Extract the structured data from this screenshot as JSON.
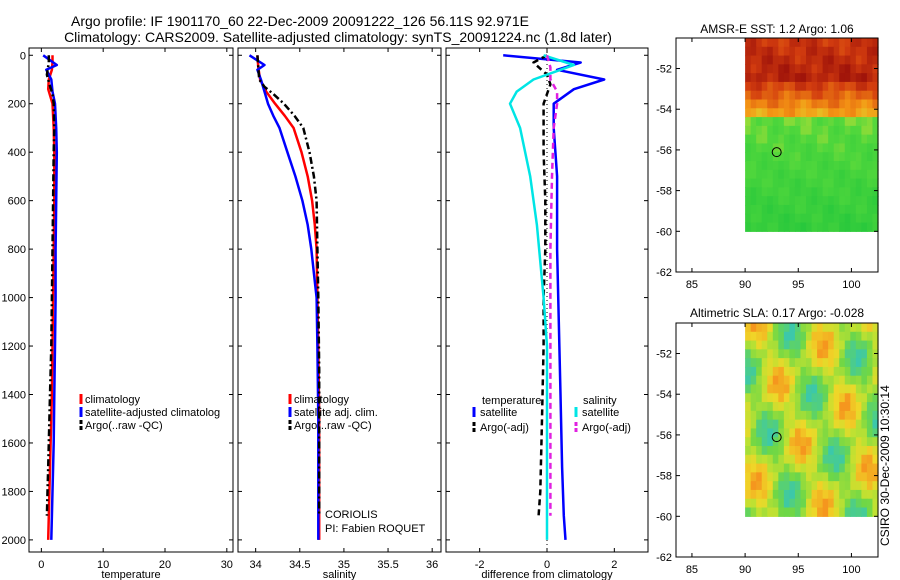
{
  "header": {
    "line1": "Argo profile: IF 1901170_60 22-Dec-2009 20091222_126 56.11S 92.971E",
    "line2": "Climatology: CARS2009. Satellite-adjusted climatology: synTS_20091224.nc (1.8d later)"
  },
  "footer_stamp": "CSIRO 30-Dec-2009 10:30:14",
  "colors": {
    "climatology": "#ff0000",
    "satellite": "#0000ff",
    "argo": "#000000",
    "sal_satellite": "#00e5e5",
    "sal_argo": "#e020e0"
  },
  "chart_data": [
    {
      "type": "line",
      "id": "temperature",
      "xlabel": "temperature",
      "ylabel": "",
      "xlim": [
        -2,
        31
      ],
      "ylim": [
        2050,
        -30
      ],
      "xticks": [
        0,
        10,
        20,
        30
      ],
      "yticks": [
        0,
        200,
        400,
        600,
        800,
        1000,
        1200,
        1400,
        1600,
        1800,
        2000
      ],
      "legend": [
        "climatology",
        "satellite-adjusted climatolog",
        "Argo(..raw -QC)"
      ],
      "legend_position": "lower-right",
      "series": [
        {
          "name": "climatology",
          "style": "solid",
          "x": [
            1.8,
            1.8,
            1.7,
            1.2,
            1.1,
            1.8,
            2.0,
            2.1,
            2.1,
            2.0,
            1.9,
            1.8,
            1.7,
            1.5,
            1.4,
            1.3,
            1.2,
            1.1
          ],
          "y": [
            0,
            30,
            60,
            100,
            140,
            200,
            300,
            400,
            600,
            800,
            1000,
            1200,
            1400,
            1600,
            1700,
            1800,
            1900,
            2000
          ]
        },
        {
          "name": "satellite-adjusted climatology",
          "style": "solid",
          "x": [
            0.3,
            2.5,
            0.8,
            1.6,
            1.8,
            2.2,
            2.4,
            2.5,
            2.4,
            2.3,
            2.3,
            2.2,
            2.1,
            2.0,
            1.9,
            1.8,
            1.7,
            1.6
          ],
          "y": [
            0,
            40,
            60,
            100,
            150,
            200,
            300,
            400,
            600,
            800,
            1000,
            1200,
            1400,
            1600,
            1700,
            1800,
            1900,
            2000
          ]
        },
        {
          "name": "Argo(..raw -QC)",
          "style": "dashdot",
          "x": [
            1.2,
            1.2,
            0.9,
            1.3,
            1.8,
            2.0,
            2.1,
            2.0,
            1.9,
            1.8,
            1.7,
            1.6,
            1.4,
            1.2,
            1.1,
            1.0,
            0.9
          ],
          "y": [
            0,
            30,
            80,
            120,
            160,
            200,
            300,
            400,
            600,
            800,
            1000,
            1200,
            1400,
            1600,
            1700,
            1800,
            1900
          ]
        }
      ]
    },
    {
      "type": "line",
      "id": "salinity",
      "xlabel": "salinity",
      "ylabel": "",
      "xlim": [
        33.8,
        36.1
      ],
      "ylim": [
        2050,
        -30
      ],
      "xticks": [
        34,
        34.5,
        35,
        35.5,
        36
      ],
      "yticks": [
        0,
        200,
        400,
        600,
        800,
        1000,
        1200,
        1400,
        1600,
        1800,
        2000
      ],
      "legend": [
        "climatology",
        "satellite adj. clim.",
        "Argo(..raw -QC)"
      ],
      "legend_position": "lower-right",
      "annotations": [
        "CORIOLIS",
        "PI: Fabien ROQUET"
      ],
      "series": [
        {
          "name": "climatology",
          "style": "solid",
          "x": [
            34.02,
            34.03,
            34.05,
            34.12,
            34.22,
            34.33,
            34.43,
            34.52,
            34.59,
            34.64,
            34.67,
            34.69,
            34.7,
            34.71,
            34.72,
            34.72,
            34.72
          ],
          "y": [
            0,
            50,
            100,
            150,
            200,
            250,
            300,
            400,
            500,
            600,
            700,
            800,
            1000,
            1200,
            1500,
            1800,
            2000
          ]
        },
        {
          "name": "satellite adj. clim.",
          "style": "solid",
          "x": [
            33.93,
            34.1,
            34.02,
            34.06,
            34.1,
            34.14,
            34.2,
            34.27,
            34.36,
            34.45,
            34.53,
            34.59,
            34.63,
            34.66,
            34.69,
            34.7,
            34.71,
            34.71
          ],
          "y": [
            0,
            40,
            60,
            100,
            150,
            200,
            250,
            300,
            400,
            500,
            600,
            700,
            800,
            900,
            1000,
            1200,
            1500,
            2000
          ]
        },
        {
          "name": "Argo(..raw -QC)",
          "style": "dashdot",
          "x": [
            34.02,
            34.03,
            34.04,
            34.1,
            34.2,
            34.32,
            34.44,
            34.54,
            34.61,
            34.66,
            34.69,
            34.7,
            34.71,
            34.72,
            34.72,
            34.72
          ],
          "y": [
            0,
            50,
            100,
            130,
            160,
            200,
            250,
            300,
            400,
            500,
            600,
            800,
            1000,
            1300,
            1600,
            1900
          ]
        }
      ]
    },
    {
      "type": "line",
      "id": "difference",
      "xlabel": "difference from climatology",
      "ylabel": "",
      "xlim": [
        -3,
        3
      ],
      "ylim": [
        2050,
        -30
      ],
      "xticks": [
        -2,
        0,
        2
      ],
      "yticks": [
        0,
        200,
        400,
        600,
        800,
        1000,
        1200,
        1400,
        1600,
        1800,
        2000
      ],
      "legend_headings": [
        "temperature",
        "salinity"
      ],
      "legend": [
        "satellite",
        "Argo(-adj)",
        "satellite",
        "Argo(-adj)"
      ],
      "legend_position": "lower-right",
      "series": [
        {
          "name": "temperature satellite",
          "style": "solid",
          "x": [
            -1.3,
            1.0,
            0.3,
            1.7,
            0.8,
            0.2,
            0.2,
            0.3,
            0.3,
            0.35,
            0.4,
            0.45,
            0.5,
            0.55
          ],
          "y": [
            0,
            30,
            60,
            100,
            140,
            200,
            300,
            500,
            800,
            1100,
            1400,
            1700,
            1900,
            2000
          ]
        },
        {
          "name": "temperature Argo(-adj)",
          "style": "dashed",
          "x": [
            0.0,
            -0.4,
            0.0,
            0.1,
            -0.1,
            -0.1,
            -0.05,
            -0.05,
            -0.1,
            -0.1,
            -0.15,
            -0.2,
            -0.25
          ],
          "y": [
            0,
            30,
            80,
            120,
            200,
            400,
            600,
            800,
            1000,
            1200,
            1500,
            1800,
            1900
          ]
        },
        {
          "name": "salinity satellite",
          "style": "solid",
          "x": [
            -0.1,
            0.8,
            0.4,
            -0.4,
            -0.9,
            -1.1,
            -0.8,
            -0.5,
            -0.3,
            -0.1,
            0.0,
            0.0,
            0.0
          ],
          "y": [
            0,
            40,
            60,
            100,
            150,
            200,
            300,
            500,
            700,
            1000,
            1200,
            1600,
            2000
          ]
        },
        {
          "name": "salinity Argo(-adj)",
          "style": "dashed",
          "x": [
            0.0,
            0.1,
            0.1,
            0.3,
            0.3,
            0.2,
            0.15,
            0.1,
            0.1,
            0.1,
            0.1,
            0.1
          ],
          "y": [
            0,
            50,
            100,
            150,
            200,
            300,
            500,
            800,
            1000,
            1300,
            1600,
            1900
          ]
        }
      ]
    },
    {
      "type": "heatmap",
      "id": "sst-map",
      "title": "AMSR-E SST: 1.2 Argo: 1.06",
      "xlim": [
        83.5,
        102.5
      ],
      "ylim": [
        -62,
        -50.5
      ],
      "xticks": [
        85,
        90,
        95,
        100
      ],
      "yticks": [
        -52,
        -54,
        -56,
        -58,
        -60,
        -62
      ],
      "coverage": {
        "lon": [
          90,
          102.5
        ],
        "lat": [
          -60,
          -50.5
        ]
      },
      "argo_position": {
        "lon": 92.971,
        "lat": -56.11
      }
    },
    {
      "type": "heatmap",
      "id": "sla-map",
      "title": "Altimetric SLA: 0.17 Argo: -0.028",
      "xlim": [
        83.5,
        102.5
      ],
      "ylim": [
        -62,
        -50.5
      ],
      "xticks": [
        85,
        90,
        95,
        100
      ],
      "yticks": [
        -52,
        -54,
        -56,
        -58,
        -60,
        -62
      ],
      "coverage": {
        "lon": [
          90,
          102.5
        ],
        "lat": [
          -60,
          -50.5
        ]
      },
      "argo_position": {
        "lon": 92.971,
        "lat": -56.11
      }
    }
  ]
}
